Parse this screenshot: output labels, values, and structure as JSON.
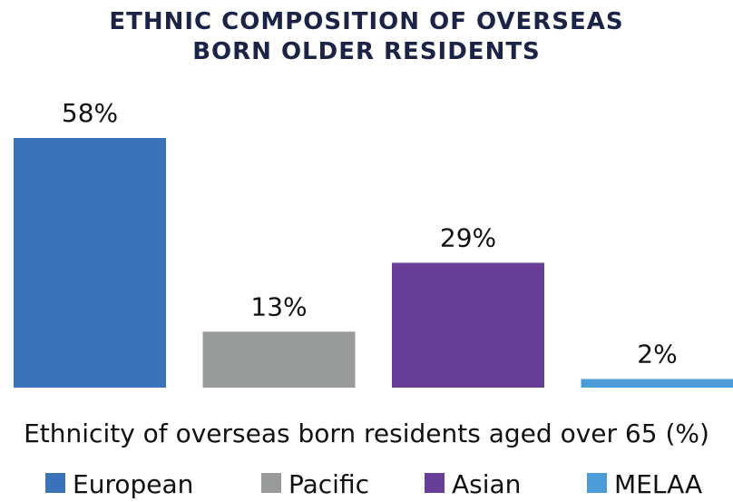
{
  "chart_data": {
    "type": "bar",
    "title": "ETHNIC COMPOSITION OF OVERSEAS BORN OLDER RESIDENTS",
    "x_label": "Ethnicity of overseas born residents aged over 65 (%)",
    "categories": [
      "European",
      "Pacific",
      "Asian",
      "MELAA"
    ],
    "values": [
      58,
      13,
      29,
      2
    ],
    "value_labels": [
      "58%",
      "13%",
      "29%",
      "2%"
    ],
    "colors": [
      "#3b73bb",
      "#999b9a",
      "#673f98",
      "#4b9cd7"
    ],
    "legend": "bottom"
  }
}
